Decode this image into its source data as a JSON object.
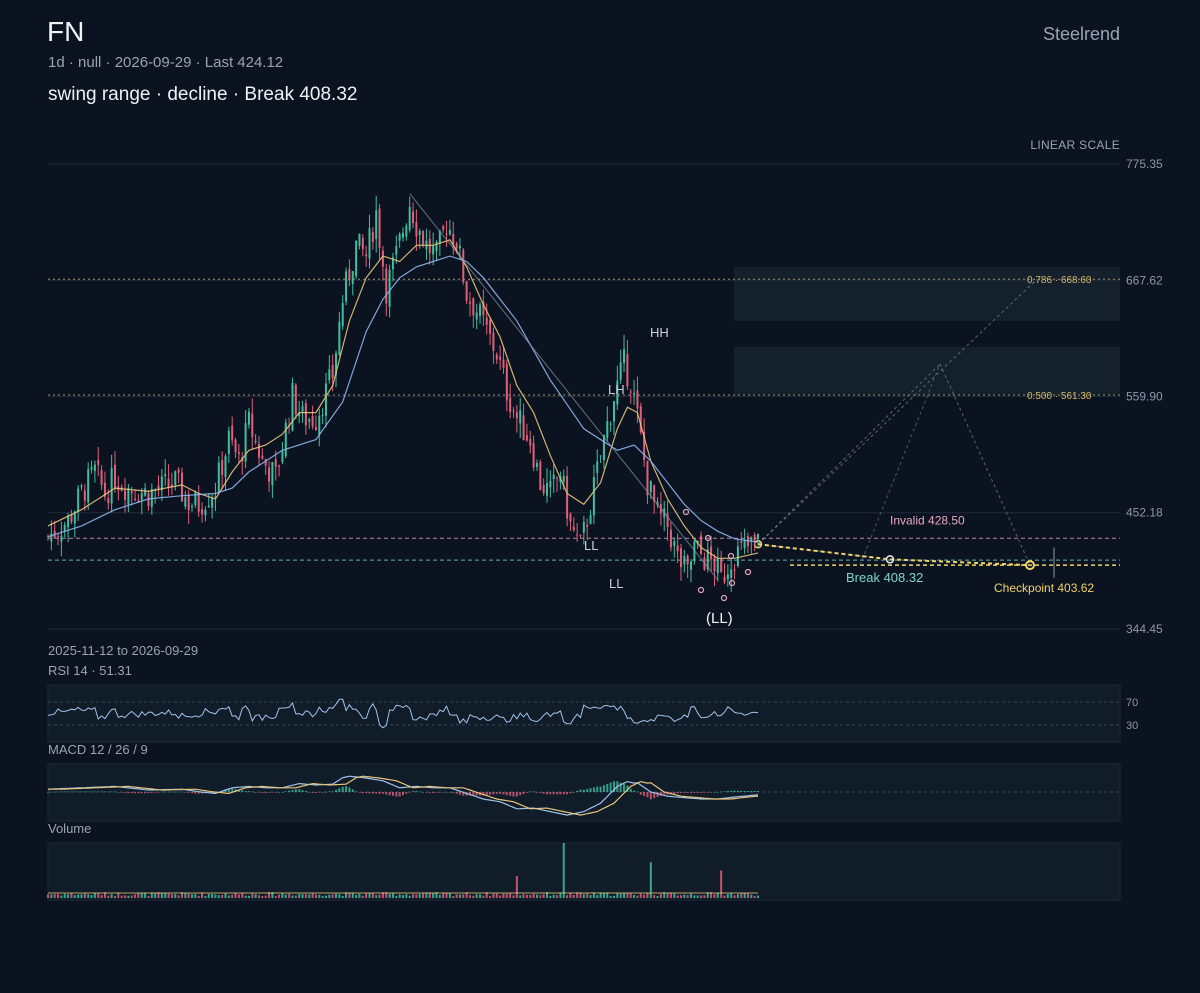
{
  "header": {
    "symbol": "FN",
    "subtitle": "1d · null · 2026-09-29 · Last 424.12",
    "headline": "swing range · decline · Break 408.32",
    "brand": "Steelrend",
    "scale_label": "LINEAR SCALE",
    "date_range": "2025-11-12 to 2026-09-29"
  },
  "panels": {
    "rsi_label": "RSI 14 · 51.31",
    "macd_label": "MACD 12 / 26 / 9",
    "volume_label": "Volume"
  },
  "colors": {
    "background": "#0b1320",
    "up": "#3fbf9f",
    "down": "#e0607a",
    "ma_fast": "#e7c47a",
    "ma_slow": "#8fb4f0",
    "invalid": "#e7a6c0",
    "break": "#7fd6c8",
    "checkpoint": "#f0d36a"
  },
  "chart_data": {
    "type": "candlestick",
    "y_axis": {
      "ticks": [
        775.35,
        667.62,
        559.9,
        452.18,
        344.45
      ],
      "range": [
        344.45,
        775.35
      ]
    },
    "price_path": [
      [
        0,
        430
      ],
      [
        6,
        445
      ],
      [
        10,
        470
      ],
      [
        14,
        490
      ],
      [
        17,
        470
      ],
      [
        20,
        485
      ],
      [
        24,
        475
      ],
      [
        30,
        470
      ],
      [
        38,
        480
      ],
      [
        42,
        462
      ],
      [
        45,
        460
      ],
      [
        50,
        475
      ],
      [
        54,
        520
      ],
      [
        57,
        500
      ],
      [
        60,
        535
      ],
      [
        64,
        500
      ],
      [
        68,
        485
      ],
      [
        73,
        560
      ],
      [
        76,
        540
      ],
      [
        80,
        540
      ],
      [
        85,
        580
      ],
      [
        88,
        650
      ],
      [
        92,
        700
      ],
      [
        95,
        690
      ],
      [
        98,
        730
      ],
      [
        101,
        660
      ],
      [
        104,
        690
      ],
      [
        108,
        740
      ],
      [
        110,
        720
      ],
      [
        113,
        700
      ],
      [
        116,
        690
      ],
      [
        119,
        720
      ],
      [
        122,
        705
      ],
      [
        125,
        655
      ],
      [
        128,
        640
      ],
      [
        131,
        620
      ],
      [
        134,
        600
      ],
      [
        137,
        565
      ],
      [
        140,
        540
      ],
      [
        144,
        520
      ],
      [
        147,
        480
      ],
      [
        150,
        470
      ],
      [
        153,
        490
      ],
      [
        156,
        440
      ],
      [
        159,
        420
      ],
      [
        162,
        460
      ],
      [
        166,
        520
      ],
      [
        169,
        560
      ],
      [
        172,
        590
      ],
      [
        174,
        575
      ],
      [
        176,
        540
      ],
      [
        179,
        480
      ],
      [
        182,
        450
      ],
      [
        185,
        440
      ],
      [
        188,
        410
      ],
      [
        191,
        395
      ],
      [
        193,
        420
      ],
      [
        196,
        410
      ],
      [
        199,
        405
      ],
      [
        201,
        390
      ],
      [
        204,
        410
      ],
      [
        206,
        415
      ],
      [
        209,
        420
      ],
      [
        212,
        424.12
      ]
    ],
    "ma_fast": [
      [
        0,
        440
      ],
      [
        10,
        455
      ],
      [
        20,
        475
      ],
      [
        30,
        472
      ],
      [
        40,
        478
      ],
      [
        45,
        470
      ],
      [
        50,
        465
      ],
      [
        55,
        490
      ],
      [
        60,
        510
      ],
      [
        65,
        515
      ],
      [
        70,
        525
      ],
      [
        75,
        545
      ],
      [
        80,
        545
      ],
      [
        85,
        570
      ],
      [
        90,
        630
      ],
      [
        95,
        670
      ],
      [
        100,
        690
      ],
      [
        105,
        685
      ],
      [
        110,
        700
      ],
      [
        115,
        700
      ],
      [
        120,
        705
      ],
      [
        125,
        680
      ],
      [
        130,
        645
      ],
      [
        135,
        615
      ],
      [
        140,
        570
      ],
      [
        145,
        545
      ],
      [
        150,
        505
      ],
      [
        155,
        470
      ],
      [
        160,
        460
      ],
      [
        165,
        480
      ],
      [
        170,
        530
      ],
      [
        173,
        550
      ],
      [
        176,
        545
      ],
      [
        180,
        500
      ],
      [
        185,
        465
      ],
      [
        190,
        440
      ],
      [
        195,
        420
      ],
      [
        200,
        410
      ],
      [
        205,
        410
      ],
      [
        212,
        415
      ]
    ],
    "ma_slow": [
      [
        0,
        430
      ],
      [
        10,
        440
      ],
      [
        20,
        455
      ],
      [
        30,
        465
      ],
      [
        40,
        468
      ],
      [
        50,
        470
      ],
      [
        55,
        475
      ],
      [
        60,
        490
      ],
      [
        65,
        500
      ],
      [
        70,
        510
      ],
      [
        80,
        520
      ],
      [
        88,
        555
      ],
      [
        95,
        620
      ],
      [
        100,
        650
      ],
      [
        105,
        670
      ],
      [
        110,
        680
      ],
      [
        115,
        685
      ],
      [
        120,
        690
      ],
      [
        125,
        685
      ],
      [
        130,
        670
      ],
      [
        140,
        630
      ],
      [
        150,
        575
      ],
      [
        160,
        530
      ],
      [
        170,
        510
      ],
      [
        175,
        515
      ],
      [
        180,
        500
      ],
      [
        185,
        480
      ],
      [
        190,
        460
      ],
      [
        195,
        445
      ],
      [
        200,
        435
      ],
      [
        205,
        428
      ],
      [
        212,
        425
      ]
    ],
    "fib_levels": [
      {
        "label": "0.786 · 668.60",
        "value": 668.6
      },
      {
        "label": "0.500 · 561.30",
        "value": 561.3
      }
    ],
    "target_zones": [
      {
        "low": 630,
        "high": 680
      },
      {
        "low": 561.3,
        "high": 606
      }
    ],
    "levels": [
      {
        "label": "Invalid 428.50",
        "value": 428.5
      },
      {
        "label": "Break 408.32",
        "value": 408.32
      },
      {
        "label": "Checkpoint 403.62",
        "value": 403.62
      }
    ],
    "pivots": [
      {
        "label": "HH",
        "x": 175,
        "y": 612
      },
      {
        "label": "LH",
        "x": 168,
        "y": 568
      },
      {
        "label": "LL",
        "x": 166,
        "y": 424
      },
      {
        "label": "LL",
        "x": 166,
        "y": 392
      },
      {
        "label": "(LL)",
        "x": 200,
        "y": 385
      }
    ],
    "rsi": {
      "period": 14,
      "last": 51.31,
      "upper": 70,
      "lower": 30
    },
    "macd": {
      "fast": 12,
      "slow": 26,
      "signal": 9
    }
  }
}
